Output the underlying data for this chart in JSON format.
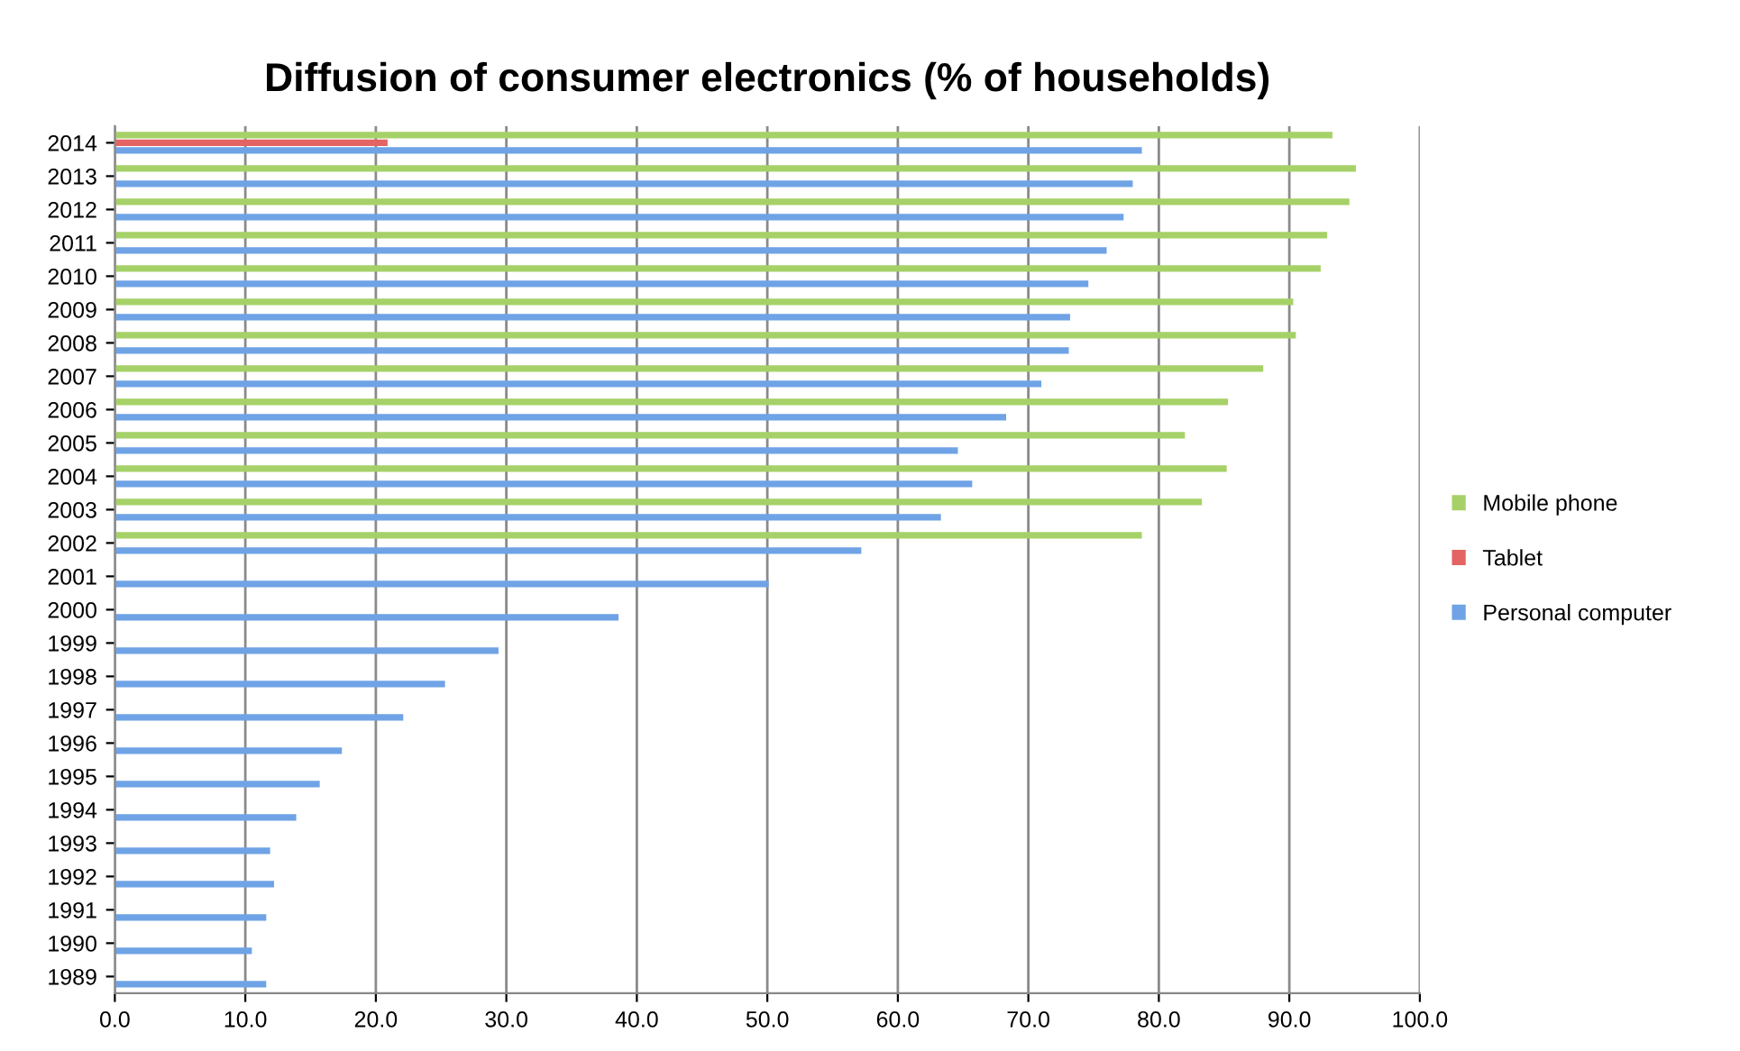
{
  "chart_data": {
    "type": "bar",
    "orientation": "horizontal",
    "title": "Diffusion of consumer electronics (% of households)",
    "categories": [
      "2014",
      "2013",
      "2012",
      "2011",
      "2010",
      "2009",
      "2008",
      "2007",
      "2006",
      "2005",
      "2004",
      "2003",
      "2002",
      "2001",
      "2000",
      "1999",
      "1998",
      "1997",
      "1996",
      "1995",
      "1994",
      "1993",
      "1992",
      "1991",
      "1990",
      "1989"
    ],
    "series": [
      {
        "name": "Mobile phone",
        "color": "#a6d168",
        "values": [
          93.3,
          95.1,
          94.6,
          92.9,
          92.4,
          90.3,
          90.5,
          88.0,
          85.3,
          82.0,
          85.2,
          83.3,
          78.7,
          null,
          null,
          null,
          null,
          null,
          null,
          null,
          null,
          null,
          null,
          null,
          null,
          null
        ]
      },
      {
        "name": "Tablet",
        "color": "#e36463",
        "values": [
          20.9,
          null,
          null,
          null,
          null,
          null,
          null,
          null,
          null,
          null,
          null,
          null,
          null,
          null,
          null,
          null,
          null,
          null,
          null,
          null,
          null,
          null,
          null,
          null,
          null,
          null
        ]
      },
      {
        "name": "Personal computer",
        "color": "#6fa3e6",
        "values": [
          78.7,
          78.0,
          77.3,
          76.0,
          74.6,
          73.2,
          73.1,
          71.0,
          68.3,
          64.6,
          65.7,
          63.3,
          57.2,
          50.1,
          38.6,
          29.4,
          25.3,
          22.1,
          17.4,
          15.7,
          13.9,
          11.9,
          12.2,
          11.6,
          10.5,
          11.6
        ]
      }
    ],
    "xlim": [
      0,
      100
    ],
    "xticks": [
      {
        "value": 0,
        "label": "0.0"
      },
      {
        "value": 10,
        "label": "10.0"
      },
      {
        "value": 20,
        "label": "20.0"
      },
      {
        "value": 30,
        "label": "30.0"
      },
      {
        "value": 40,
        "label": "40.0"
      },
      {
        "value": 50,
        "label": "50.0"
      },
      {
        "value": 60,
        "label": "60.0"
      },
      {
        "value": 70,
        "label": "70.0"
      },
      {
        "value": 80,
        "label": "80.0"
      },
      {
        "value": 90,
        "label": "90.0"
      },
      {
        "value": 100,
        "label": "100.0"
      }
    ],
    "grid": "x",
    "legend": "right"
  }
}
